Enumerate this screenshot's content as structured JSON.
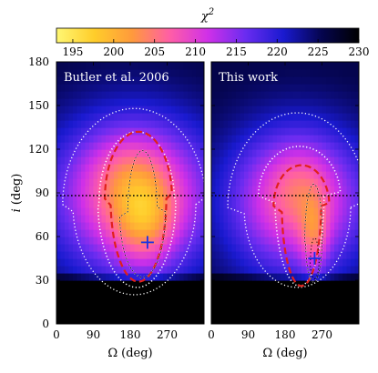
{
  "chart_data": {
    "type": "heatmap",
    "colorbar": {
      "title": "χ",
      "title_superscript": "2",
      "ticks": [
        195,
        200,
        205,
        210,
        215,
        220,
        225,
        230
      ],
      "range": [
        193,
        230
      ],
      "colors": [
        "#fff774",
        "#ffcd2a",
        "#ff9a3c",
        "#ff5ea6",
        "#d030e8",
        "#6a2cf0",
        "#1a1ad0",
        "#050550",
        "#000000"
      ]
    },
    "x_axis": {
      "label": "Ω",
      "unit": "(deg)",
      "ticks": [
        0,
        90,
        180,
        270
      ],
      "range": [
        0,
        360
      ]
    },
    "y_axis": {
      "label": "i",
      "unit": "(deg)",
      "ticks": [
        0,
        30,
        60,
        90,
        120,
        150,
        180
      ],
      "range": [
        0,
        180
      ]
    },
    "reference_line": {
      "y": 87,
      "style": "dotted"
    },
    "panels": [
      {
        "title": "Butler et al. 2006",
        "best_fit": {
          "x": 222,
          "y": 56
        },
        "min_chi2": 194.5,
        "contour_colors": {
          "red": "#e0201b",
          "white": "#ffffff"
        }
      },
      {
        "title": "This work",
        "best_fit": {
          "x": 252,
          "y": 45
        },
        "min_chi2": 194.5,
        "contour_colors": {
          "red": "#e0201b",
          "white": "#ffffff"
        }
      }
    ]
  }
}
